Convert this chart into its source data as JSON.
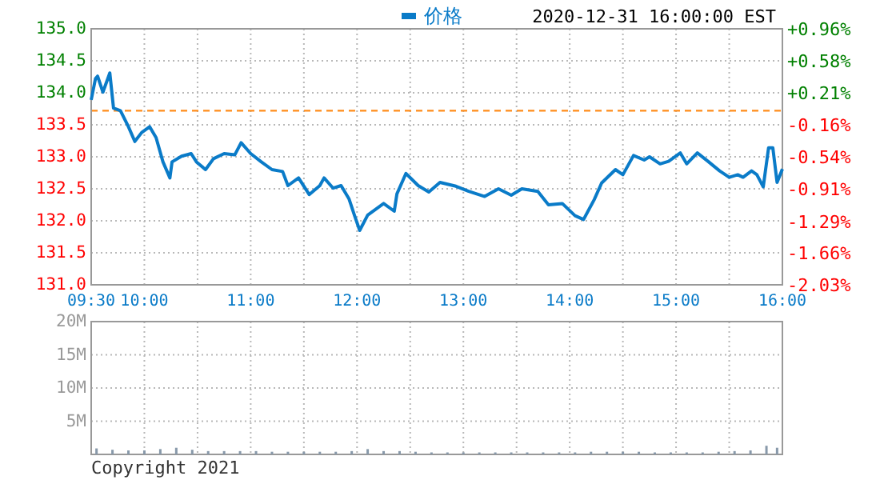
{
  "chart_data": [
    {
      "type": "line",
      "subtitle": "2020-12-31 16:00:00 EST",
      "legend": "top",
      "grid": true,
      "line_style": "solid",
      "marker": "none",
      "xlim": [
        9.5,
        16
      ],
      "xticks": [
        {
          "value": 9.5,
          "label": "09:30"
        },
        {
          "value": 10,
          "label": "10:00"
        },
        {
          "value": 10.5,
          "label": null
        },
        {
          "value": 11,
          "label": "11:00"
        },
        {
          "value": 11.5,
          "label": null
        },
        {
          "value": 12,
          "label": "12:00"
        },
        {
          "value": 12.5,
          "label": null
        },
        {
          "value": 13,
          "label": "13:00"
        },
        {
          "value": 13.5,
          "label": null
        },
        {
          "value": 14,
          "label": "14:00"
        },
        {
          "value": 14.5,
          "label": null
        },
        {
          "value": 15,
          "label": "15:00"
        },
        {
          "value": 15.5,
          "label": null
        },
        {
          "value": 16,
          "label": "16:00"
        }
      ],
      "ylim": [
        131,
        135
      ],
      "yticks": [
        {
          "value": 131,
          "label": "131.0"
        },
        {
          "value": 131.5,
          "label": "131.5"
        },
        {
          "value": 132,
          "label": "132.0"
        },
        {
          "value": 132.5,
          "label": "132.5"
        },
        {
          "value": 133,
          "label": "133.0"
        },
        {
          "value": 133.5,
          "label": "133.5"
        },
        {
          "value": 134,
          "label": "134.0"
        },
        {
          "value": 134.5,
          "label": "134.5"
        },
        {
          "value": 135,
          "label": "135.0"
        }
      ],
      "y2lim": [
        -2.03,
        0.96
      ],
      "y2ticks": [
        {
          "value": -2.03,
          "label": "-2.03%"
        },
        {
          "value": -1.66,
          "label": "-1.66%"
        },
        {
          "value": -1.29,
          "label": "-1.29%"
        },
        {
          "value": -0.91,
          "label": "-0.91%"
        },
        {
          "value": -0.54,
          "label": "-0.54%"
        },
        {
          "value": -0.16,
          "label": "-0.16%"
        },
        {
          "value": 0.21,
          "label": "+0.21%"
        },
        {
          "value": 0.58,
          "label": "+0.58%"
        },
        {
          "value": 0.96,
          "label": "+0.96%"
        }
      ],
      "ref_lines": [
        {
          "axis": "y",
          "value": 133.72,
          "color": "#ff8c1a",
          "line_style": "dashed"
        }
      ],
      "series": [
        {
          "name": "价格",
          "color": "#0a7bc8",
          "x": [
            9.5,
            9.54,
            9.56,
            9.61,
            9.675,
            9.71,
            9.775,
            9.85,
            9.91,
            9.975,
            10.05,
            10.11,
            10.175,
            10.24,
            10.26,
            10.35,
            10.44,
            10.49,
            10.575,
            10.65,
            10.75,
            10.85,
            10.91,
            11.0,
            11.1,
            11.2,
            11.3,
            11.35,
            11.45,
            11.55,
            11.65,
            11.69,
            11.775,
            11.85,
            11.925,
            11.975,
            12.025,
            12.1,
            12.25,
            12.35,
            12.375,
            12.46,
            12.575,
            12.675,
            12.78,
            12.93,
            13.05,
            13.2,
            13.33,
            13.45,
            13.55,
            13.7,
            13.8,
            13.93,
            14.05,
            14.13,
            14.23,
            14.3,
            14.43,
            14.5,
            14.6,
            14.7,
            14.75,
            14.85,
            14.93,
            15.04,
            15.1,
            15.2,
            15.3,
            15.41,
            15.5,
            15.58,
            15.63,
            15.71,
            15.76,
            15.82,
            15.87,
            15.91,
            15.95,
            16.0
          ],
          "values": [
            133.89,
            134.22,
            134.26,
            134.01,
            134.31,
            133.76,
            133.72,
            133.47,
            133.24,
            133.38,
            133.47,
            133.3,
            132.92,
            132.67,
            132.92,
            133.01,
            133.05,
            132.92,
            132.8,
            132.97,
            133.05,
            133.03,
            133.22,
            133.05,
            132.92,
            132.8,
            132.77,
            132.55,
            132.67,
            132.41,
            132.55,
            132.67,
            132.51,
            132.55,
            132.34,
            132.09,
            131.85,
            132.09,
            132.27,
            132.15,
            132.42,
            132.74,
            132.55,
            132.45,
            132.6,
            132.54,
            132.46,
            132.38,
            132.5,
            132.4,
            132.5,
            132.46,
            132.25,
            132.27,
            132.08,
            132.02,
            132.33,
            132.59,
            132.8,
            132.72,
            133.02,
            132.95,
            133.0,
            132.89,
            132.93,
            133.06,
            132.89,
            133.06,
            132.93,
            132.78,
            132.68,
            132.72,
            132.68,
            132.78,
            132.72,
            132.53,
            133.14,
            133.14,
            132.6,
            132.81
          ]
        }
      ]
    },
    {
      "type": "bar",
      "grid": true,
      "tick_labels": "y",
      "annotations": [
        "Copyright 2021"
      ],
      "xlim": [
        9.5,
        16
      ],
      "xticks": [
        {
          "value": 9.5,
          "label": null
        },
        {
          "value": 10,
          "label": null
        },
        {
          "value": 10.5,
          "label": null
        },
        {
          "value": 11,
          "label": null
        },
        {
          "value": 11.5,
          "label": null
        },
        {
          "value": 12,
          "label": null
        },
        {
          "value": 12.5,
          "label": null
        },
        {
          "value": 13,
          "label": null
        },
        {
          "value": 13.5,
          "label": null
        },
        {
          "value": 14,
          "label": null
        },
        {
          "value": 14.5,
          "label": null
        },
        {
          "value": 15,
          "label": null
        },
        {
          "value": 15.5,
          "label": null
        },
        {
          "value": 16,
          "label": null
        }
      ],
      "ylim": [
        0,
        20
      ],
      "yticks": [
        {
          "value": 5,
          "label": "5M"
        },
        {
          "value": 10,
          "label": "10M"
        },
        {
          "value": 15,
          "label": "15M"
        },
        {
          "value": 20,
          "label": "20M"
        }
      ],
      "x": [
        9.55,
        9.7,
        9.85,
        10.0,
        10.15,
        10.3,
        10.45,
        10.6,
        10.75,
        10.9,
        11.05,
        11.2,
        11.35,
        11.5,
        11.65,
        11.8,
        11.95,
        12.1,
        12.25,
        12.4,
        12.55,
        12.7,
        12.85,
        13.0,
        13.15,
        13.3,
        13.45,
        13.6,
        13.75,
        13.9,
        14.05,
        14.2,
        14.35,
        14.5,
        14.65,
        14.8,
        14.95,
        15.1,
        15.25,
        15.4,
        15.55,
        15.7,
        15.85,
        15.95
      ],
      "values": [
        0.9,
        0.7,
        0.6,
        0.6,
        0.8,
        1.0,
        0.7,
        0.5,
        0.5,
        0.5,
        0.5,
        0.4,
        0.4,
        0.4,
        0.4,
        0.4,
        0.5,
        0.8,
        0.5,
        0.5,
        0.4,
        0.3,
        0.3,
        0.3,
        0.3,
        0.3,
        0.3,
        0.3,
        0.3,
        0.3,
        0.3,
        0.4,
        0.4,
        0.4,
        0.4,
        0.3,
        0.3,
        0.3,
        0.3,
        0.4,
        0.5,
        0.6,
        1.3,
        1.0
      ],
      "color": "#8899aa"
    }
  ]
}
